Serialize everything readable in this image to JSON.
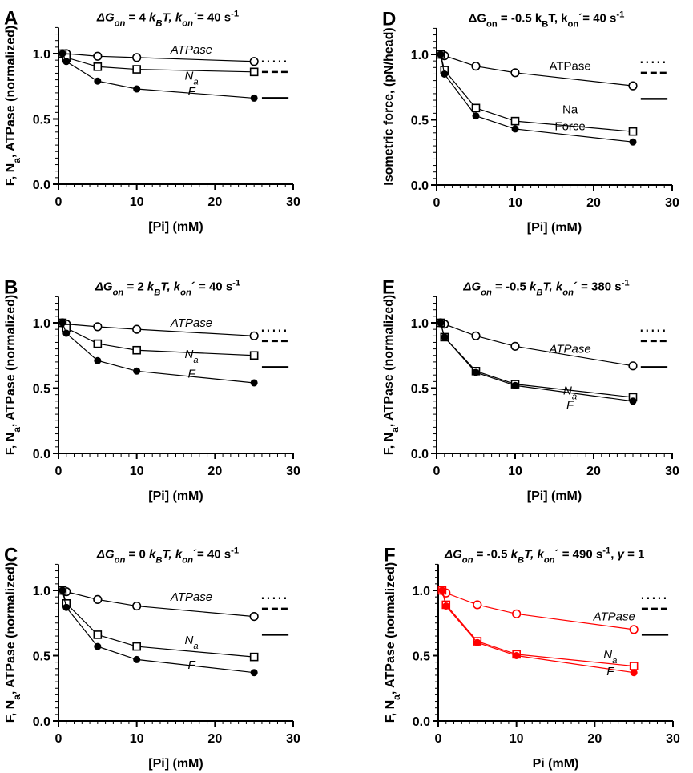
{
  "chart_data": [
    {
      "panel": "A",
      "type": "line",
      "title_parts": [
        {
          "t": "ΔG",
          "s": "i"
        },
        {
          "t": "on",
          "s": "isub"
        },
        {
          "t": " = 4 ",
          "s": "n"
        },
        {
          "t": "k",
          "s": "i"
        },
        {
          "t": "B",
          "s": "isub"
        },
        {
          "t": "T, k",
          "s": "i"
        },
        {
          "t": "on",
          "s": "isub"
        },
        {
          "t": "´= 40 s",
          "s": "n"
        },
        {
          "t": "-1",
          "s": "sup"
        }
      ],
      "ylabel_parts": [
        {
          "t": "F, N",
          "s": "n"
        },
        {
          "t": "a",
          "s": "sub"
        },
        {
          "t": ", ATPase (normalized)",
          "s": "n"
        }
      ],
      "xlabel": "[Pi] (mM)",
      "xlim": [
        0,
        30
      ],
      "ylim": [
        0,
        1.2
      ],
      "xticks": [
        "0",
        "10",
        "20",
        "30"
      ],
      "yticks": [
        "0.0",
        "0.5",
        "1.0"
      ],
      "label_style": "italic",
      "color": "#000000",
      "x": [
        0.5,
        1,
        5,
        10,
        25
      ],
      "series": [
        {
          "name": "ATPase",
          "marker": "open-circle",
          "values": [
            1.0,
            1.0,
            0.98,
            0.97,
            0.94
          ]
        },
        {
          "name": "Na",
          "marker": "open-square",
          "values": [
            1.0,
            0.97,
            0.9,
            0.88,
            0.86
          ]
        },
        {
          "name": "F",
          "marker": "filled-circle",
          "values": [
            1.0,
            0.94,
            0.79,
            0.73,
            0.66
          ]
        }
      ],
      "reference_lines": [
        {
          "style": "dotted",
          "value": 0.94
        },
        {
          "style": "dashed",
          "value": 0.86
        },
        {
          "style": "solid",
          "value": 0.66
        }
      ]
    },
    {
      "panel": "B",
      "type": "line",
      "title_parts": [
        {
          "t": "ΔG",
          "s": "i"
        },
        {
          "t": "on",
          "s": "isub"
        },
        {
          "t": " = 2 ",
          "s": "n"
        },
        {
          "t": "k",
          "s": "i"
        },
        {
          "t": "B",
          "s": "isub"
        },
        {
          "t": "T, k",
          "s": "i"
        },
        {
          "t": "on",
          "s": "isub"
        },
        {
          "t": "´ = 40 s",
          "s": "n"
        },
        {
          "t": "-1",
          "s": "sup"
        }
      ],
      "ylabel_parts": [
        {
          "t": "F, N",
          "s": "n"
        },
        {
          "t": "a",
          "s": "sub"
        },
        {
          "t": ", ATPase (normalized)",
          "s": "n"
        }
      ],
      "xlabel": "[Pi] (mM)",
      "xlim": [
        0,
        30
      ],
      "ylim": [
        0,
        1.2
      ],
      "xticks": [
        "0",
        "10",
        "20",
        "30"
      ],
      "yticks": [
        "0.0",
        "0.5",
        "1.0"
      ],
      "label_style": "italic",
      "color": "#000000",
      "x": [
        0.5,
        1,
        5,
        10,
        25
      ],
      "series": [
        {
          "name": "ATPase",
          "marker": "open-circle",
          "values": [
            1.0,
            0.99,
            0.97,
            0.95,
            0.9
          ]
        },
        {
          "name": "Na",
          "marker": "open-square",
          "values": [
            1.0,
            0.96,
            0.84,
            0.79,
            0.75
          ]
        },
        {
          "name": "F",
          "marker": "filled-circle",
          "values": [
            1.0,
            0.92,
            0.71,
            0.63,
            0.54
          ]
        }
      ],
      "reference_lines": [
        {
          "style": "dotted",
          "value": 0.94
        },
        {
          "style": "dashed",
          "value": 0.86
        },
        {
          "style": "solid",
          "value": 0.66
        }
      ]
    },
    {
      "panel": "C",
      "type": "line",
      "title_parts": [
        {
          "t": "ΔG",
          "s": "i"
        },
        {
          "t": "on",
          "s": "isub"
        },
        {
          "t": " = 0 ",
          "s": "n"
        },
        {
          "t": "k",
          "s": "i"
        },
        {
          "t": "B",
          "s": "isub"
        },
        {
          "t": "T, k",
          "s": "i"
        },
        {
          "t": "on",
          "s": "isub"
        },
        {
          "t": "´= 40 s",
          "s": "n"
        },
        {
          "t": "-1",
          "s": "sup"
        }
      ],
      "ylabel_parts": [
        {
          "t": "F, N",
          "s": "n"
        },
        {
          "t": "a",
          "s": "sub"
        },
        {
          "t": ", ATPase (normalized)",
          "s": "n"
        }
      ],
      "xlabel": "[Pi] (mM)",
      "xlim": [
        0,
        30
      ],
      "ylim": [
        0,
        1.2
      ],
      "xticks": [
        "0",
        "10",
        "20",
        "30"
      ],
      "yticks": [
        "0.0",
        "0.5",
        "1.0"
      ],
      "label_style": "italic",
      "color": "#000000",
      "x": [
        0.5,
        1,
        5,
        10,
        25
      ],
      "series": [
        {
          "name": "ATPase",
          "marker": "open-circle",
          "values": [
            1.0,
            0.99,
            0.93,
            0.88,
            0.8
          ]
        },
        {
          "name": "Na",
          "marker": "open-square",
          "values": [
            1.0,
            0.9,
            0.66,
            0.57,
            0.49
          ]
        },
        {
          "name": "F",
          "marker": "filled-circle",
          "values": [
            1.0,
            0.87,
            0.57,
            0.47,
            0.37
          ]
        }
      ],
      "reference_lines": [
        {
          "style": "dotted",
          "value": 0.94
        },
        {
          "style": "dashed",
          "value": 0.86
        },
        {
          "style": "solid",
          "value": 0.66
        }
      ]
    },
    {
      "panel": "D",
      "type": "line",
      "title_parts": [
        {
          "t": "ΔG",
          "s": "n"
        },
        {
          "t": "on",
          "s": "sub"
        },
        {
          "t": " = -0.5 k",
          "s": "n"
        },
        {
          "t": "B",
          "s": "sub"
        },
        {
          "t": "T, k",
          "s": "n"
        },
        {
          "t": "on",
          "s": "sub"
        },
        {
          "t": "´= 40 s",
          "s": "n"
        },
        {
          "t": "-1",
          "s": "sup"
        }
      ],
      "ylabel_parts": [
        {
          "t": "Isometric force, (pN/head)",
          "s": "n"
        }
      ],
      "xlabel": "[Pi] (mM)",
      "xlim": [
        0,
        30
      ],
      "ylim": [
        0,
        1.2
      ],
      "xticks": [
        "0",
        "10",
        "20",
        "30"
      ],
      "yticks": [
        "0.0",
        "0.5",
        "1.0"
      ],
      "label_style": "normal",
      "color": "#000000",
      "x": [
        0.5,
        1,
        5,
        10,
        25
      ],
      "series": [
        {
          "name": "ATPase",
          "marker": "open-circle",
          "values": [
            1.0,
            0.99,
            0.91,
            0.86,
            0.76
          ]
        },
        {
          "name": "Na",
          "marker": "open-square",
          "values": [
            1.0,
            0.88,
            0.59,
            0.49,
            0.41
          ]
        },
        {
          "name": "Force",
          "marker": "filled-circle",
          "values": [
            1.0,
            0.85,
            0.53,
            0.43,
            0.33
          ]
        }
      ],
      "reference_lines": [
        {
          "style": "dotted",
          "value": 0.94
        },
        {
          "style": "dashed",
          "value": 0.86
        },
        {
          "style": "solid",
          "value": 0.66
        }
      ]
    },
    {
      "panel": "E",
      "type": "line",
      "title_parts": [
        {
          "t": "ΔG",
          "s": "i"
        },
        {
          "t": "on",
          "s": "isub"
        },
        {
          "t": " = -0.5 ",
          "s": "n"
        },
        {
          "t": "k",
          "s": "i"
        },
        {
          "t": "B",
          "s": "isub"
        },
        {
          "t": "T, k",
          "s": "i"
        },
        {
          "t": "on",
          "s": "isub"
        },
        {
          "t": "´ = 380 s",
          "s": "n"
        },
        {
          "t": "-1",
          "s": "sup"
        }
      ],
      "ylabel_parts": [
        {
          "t": "F, N",
          "s": "n"
        },
        {
          "t": "a",
          "s": "sub"
        },
        {
          "t": ", ATPase (normalized)",
          "s": "n"
        }
      ],
      "xlabel": "[Pi] (mM)",
      "xlim": [
        0,
        30
      ],
      "ylim": [
        0,
        1.2
      ],
      "xticks": [
        "0",
        "10",
        "20",
        "30"
      ],
      "yticks": [
        "0.0",
        "0.5",
        "1.0"
      ],
      "label_style": "italic",
      "color": "#000000",
      "x": [
        0.5,
        1,
        5,
        10,
        25
      ],
      "series": [
        {
          "name": "ATPase",
          "marker": "open-circle",
          "values": [
            1.0,
            0.99,
            0.9,
            0.82,
            0.67
          ]
        },
        {
          "name": "Na",
          "marker": "open-square",
          "values": [
            1.0,
            0.89,
            0.63,
            0.53,
            0.43
          ]
        },
        {
          "name": "F",
          "marker": "filled-circle",
          "values": [
            1.0,
            0.89,
            0.62,
            0.52,
            0.4
          ]
        }
      ],
      "reference_lines": [
        {
          "style": "solid",
          "value": 0.66
        },
        {
          "style": "dotted",
          "value": 0.94
        },
        {
          "style": "dashed",
          "value": 0.86
        }
      ]
    },
    {
      "panel": "F",
      "type": "line",
      "title_parts": [
        {
          "t": "ΔG",
          "s": "i"
        },
        {
          "t": "on",
          "s": "isub"
        },
        {
          "t": " = -0.5 ",
          "s": "n"
        },
        {
          "t": "k",
          "s": "i"
        },
        {
          "t": "B",
          "s": "isub"
        },
        {
          "t": "T, k",
          "s": "i"
        },
        {
          "t": "on",
          "s": "isub"
        },
        {
          "t": "´ = 490 s",
          "s": "n"
        },
        {
          "t": "-1",
          "s": "sup"
        },
        {
          "t": ", ",
          "s": "n"
        },
        {
          "t": "γ",
          "s": "i"
        },
        {
          "t": " = 1",
          "s": "n"
        }
      ],
      "ylabel_parts": [
        {
          "t": "F, N",
          "s": "n"
        },
        {
          "t": "a",
          "s": "sub"
        },
        {
          "t": ", ATPase (normalized)",
          "s": "n"
        }
      ],
      "xlabel": "Pi (mM)",
      "xlim": [
        0,
        30
      ],
      "ylim": [
        0,
        1.2
      ],
      "xticks": [
        "0",
        "10",
        "20",
        "30"
      ],
      "yticks": [
        "0.0",
        "0.5",
        "1.0"
      ],
      "label_style": "italic",
      "color": "#ff0000",
      "x": [
        0.5,
        1,
        5,
        10,
        25
      ],
      "series": [
        {
          "name": "ATPase",
          "marker": "open-circle",
          "values": [
            1.0,
            0.98,
            0.89,
            0.82,
            0.7
          ]
        },
        {
          "name": "Na",
          "marker": "open-square",
          "values": [
            1.0,
            0.89,
            0.61,
            0.51,
            0.42
          ]
        },
        {
          "name": "F",
          "marker": "filled-circle",
          "values": [
            1.0,
            0.88,
            0.6,
            0.5,
            0.37
          ]
        }
      ],
      "reference_lines": [
        {
          "style": "dotted",
          "value": 0.94
        },
        {
          "style": "dashed",
          "value": 0.86
        },
        {
          "style": "solid",
          "value": 0.66
        }
      ]
    }
  ]
}
